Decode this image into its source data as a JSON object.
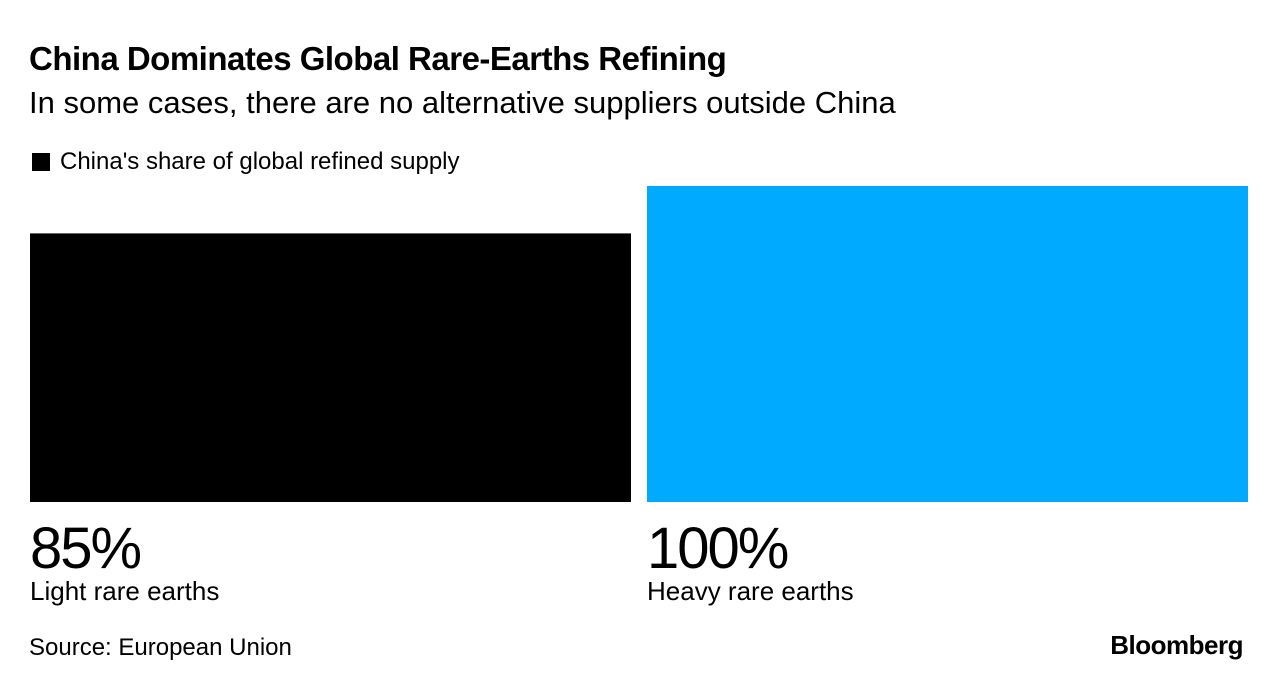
{
  "chart_data": {
    "type": "bar",
    "title": "China Dominates Global Rare-Earths Refining",
    "subtitle": "In some cases, there are no alternative suppliers outside China",
    "legend": [
      {
        "label": "China's share of global refined supply",
        "color": "#000000"
      }
    ],
    "categories": [
      "Light rare earths",
      "Heavy rare earths"
    ],
    "series": [
      {
        "name": "China's share of global refined supply",
        "values": [
          85,
          100
        ]
      }
    ],
    "value_labels": [
      "85%",
      "100%"
    ],
    "bar_colors": [
      "#000000",
      "#00aaff"
    ],
    "ylim": [
      0,
      100
    ],
    "unit": "%",
    "grid": false,
    "legend_position": "top-left"
  },
  "footer": {
    "source": "Source: European Union",
    "brand": "Bloomberg"
  }
}
